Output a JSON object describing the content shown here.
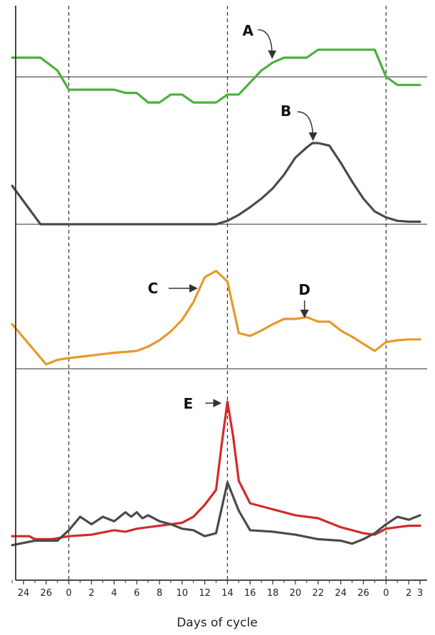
{
  "chart_data": {
    "type": "line",
    "xlabel": "Days of cycle",
    "x_tick_labels": [
      "24",
      "26",
      "0",
      "2",
      "4",
      "6",
      "8",
      "10",
      "12",
      "14",
      "16",
      "18",
      "20",
      "22",
      "24",
      "26",
      "0",
      "2",
      "3"
    ],
    "x_index": [
      -4,
      -2,
      0,
      2,
      4,
      6,
      8,
      10,
      12,
      14,
      16,
      18,
      20,
      22,
      24,
      26,
      28,
      30,
      31
    ],
    "reference_lines_at_index": [
      0,
      14,
      28
    ],
    "colors": {
      "panel1": "#4caf3e",
      "panel2": "#4a4a4a",
      "panel3": "#e8982a",
      "panel4_red": "#d42a2a",
      "panel4_dark": "#4a4a4a",
      "axis": "#333333",
      "arrow": "#333333"
    },
    "panels": [
      {
        "baseline": 0,
        "ylim": [
          -1.6,
          1.1
        ],
        "series": [
          {
            "color_key": "panel1",
            "x": [
              -5,
              -2.5,
              -1,
              0,
              1,
              4,
              5,
              6,
              7,
              8,
              9,
              10,
              11,
              12,
              13,
              14,
              15,
              17,
              18,
              19,
              20,
              21,
              22,
              23,
              24,
              25,
              26,
              27,
              28,
              29,
              30,
              31
            ],
            "y": [
              0.6,
              0.6,
              0.2,
              -0.4,
              -0.4,
              -0.4,
              -0.5,
              -0.5,
              -0.8,
              -0.8,
              -0.55,
              -0.55,
              -0.8,
              -0.8,
              -0.8,
              -0.55,
              -0.55,
              0.2,
              0.45,
              0.6,
              0.6,
              0.6,
              0.85,
              0.85,
              0.85,
              0.85,
              0.85,
              0.85,
              0.0,
              -0.25,
              -0.25,
              -0.25
            ]
          }
        ]
      },
      {
        "baseline": 0,
        "ylim": [
          0,
          1.25
        ],
        "series": [
          {
            "color_key": "panel2",
            "x": [
              -5,
              -2.5,
              0,
              6,
              10,
              12,
              13,
              14,
              15,
              16,
              17,
              18,
              19,
              20,
              21,
              21.5,
              22,
              23,
              24,
              25,
              26,
              27,
              28,
              29,
              30,
              31
            ],
            "y": [
              0.45,
              0.0,
              0.0,
              0.0,
              0.0,
              0.0,
              0.0,
              0.04,
              0.11,
              0.2,
              0.3,
              0.42,
              0.58,
              0.78,
              0.9,
              0.95,
              0.95,
              0.92,
              0.72,
              0.5,
              0.3,
              0.15,
              0.08,
              0.04,
              0.03,
              0.03
            ]
          }
        ]
      },
      {
        "baseline": 0,
        "ylim": [
          0,
          1.3
        ],
        "series": [
          {
            "color_key": "panel3",
            "x": [
              -5,
              -2,
              -1,
              0,
              2,
              4,
              6,
              7,
              8,
              9,
              10,
              11,
              12,
              13,
              14,
              15,
              16,
              17,
              18,
              19,
              20,
              21,
              22,
              23,
              24,
              25,
              26,
              27,
              28,
              29,
              30,
              31
            ],
            "y": [
              0.5,
              0.05,
              0.1,
              0.12,
              0.15,
              0.18,
              0.2,
              0.25,
              0.32,
              0.42,
              0.55,
              0.75,
              1.03,
              1.1,
              0.98,
              0.4,
              0.37,
              0.43,
              0.5,
              0.56,
              0.56,
              0.58,
              0.53,
              0.53,
              0.43,
              0.36,
              0.28,
              0.2,
              0.3,
              0.32,
              0.33,
              0.33
            ]
          }
        ]
      },
      {
        "baseline": null,
        "ylim": [
          0,
          1.0
        ],
        "series": [
          {
            "color_key": "panel4_red",
            "x": [
              -5,
              -3.5,
              -3,
              -1.5,
              0,
              2,
              4,
              5,
              6,
              7,
              8,
              9,
              10,
              11,
              12,
              13,
              13.5,
              14,
              14.5,
              15,
              16,
              18,
              20,
              22,
              24,
              26,
              27,
              28,
              29,
              30,
              31
            ],
            "y": [
              0.08,
              0.08,
              0.06,
              0.06,
              0.08,
              0.09,
              0.12,
              0.11,
              0.13,
              0.14,
              0.15,
              0.16,
              0.17,
              0.21,
              0.29,
              0.39,
              0.7,
              0.98,
              0.75,
              0.45,
              0.3,
              0.26,
              0.22,
              0.2,
              0.14,
              0.1,
              0.09,
              0.13,
              0.14,
              0.15,
              0.15
            ]
          },
          {
            "color_key": "panel4_dark",
            "x": [
              -5,
              -3,
              -1,
              0,
              1,
              2,
              3,
              4,
              5,
              5.5,
              6,
              6.5,
              7,
              8,
              9,
              10,
              11,
              12,
              13,
              14,
              15,
              16,
              18,
              20,
              22,
              24,
              25,
              26,
              27,
              28,
              29,
              30,
              31
            ],
            "y": [
              0.02,
              0.05,
              0.05,
              0.12,
              0.21,
              0.16,
              0.21,
              0.18,
              0.24,
              0.21,
              0.24,
              0.2,
              0.22,
              0.18,
              0.16,
              0.13,
              0.12,
              0.08,
              0.1,
              0.44,
              0.25,
              0.12,
              0.11,
              0.09,
              0.06,
              0.05,
              0.03,
              0.06,
              0.1,
              0.16,
              0.21,
              0.19,
              0.22
            ]
          }
        ]
      }
    ],
    "annotations": [
      {
        "label": "A",
        "panel": 0,
        "x": 18.2,
        "y": 0.45
      },
      {
        "label": "B",
        "panel": 1,
        "x": 21.8,
        "y": 0.95
      },
      {
        "label": "C",
        "panel": 2,
        "x": 11.7,
        "y": 0.88
      },
      {
        "label": "D",
        "panel": 2,
        "x": 20.8,
        "y": 0.56
      },
      {
        "label": "E",
        "panel": 3,
        "x": 13.8,
        "y": 0.98
      }
    ]
  }
}
